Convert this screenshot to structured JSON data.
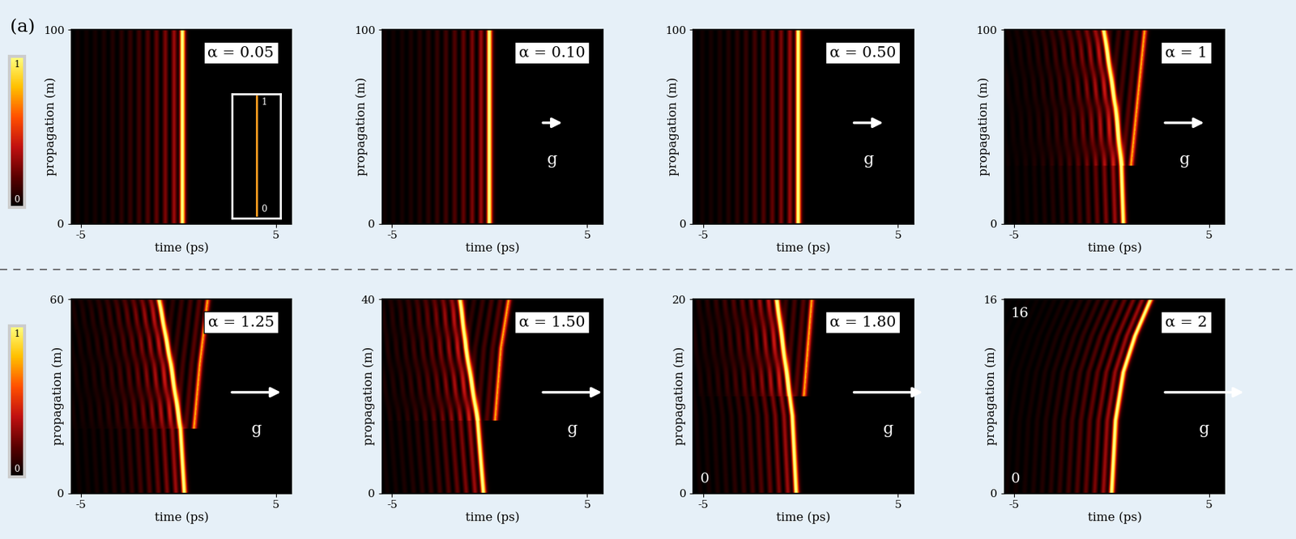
{
  "panel_label": "(a)",
  "colorbar": {
    "range": [
      0,
      1
    ],
    "ticks": [
      0,
      1
    ]
  },
  "chart_data": [
    {
      "type": "heatmap",
      "title": "α = 0.05",
      "xlabel": "time (ps)",
      "ylabel": "propagation (m)",
      "xlim": [
        -5.5,
        5.8
      ],
      "xticks": [
        -5,
        5
      ],
      "ylim": [
        0,
        100
      ],
      "yticks": [
        0,
        100
      ],
      "g_arrow": false,
      "g_label": null,
      "inset": {
        "labels": [
          "1",
          "0"
        ]
      },
      "annotations": [],
      "trajectories": [
        {
          "z": [
            0,
            100
          ],
          "t": [
            0.2,
            0.2
          ],
          "amplitude": 1
        }
      ]
    },
    {
      "type": "heatmap",
      "title": "α = 0.10",
      "xlabel": "time (ps)",
      "ylabel": "propagation (m)",
      "xlim": [
        -5.5,
        5.8
      ],
      "xticks": [
        -5,
        5
      ],
      "ylim": [
        0,
        100
      ],
      "yticks": [
        0,
        100
      ],
      "g_arrow": true,
      "g_label": "g",
      "annotations": [],
      "trajectories": [
        {
          "z": [
            0,
            100
          ],
          "t": [
            0.0,
            0.0
          ],
          "amplitude": 1
        }
      ]
    },
    {
      "type": "heatmap",
      "title": "α = 0.50",
      "xlabel": "time (ps)",
      "ylabel": "propagation (m)",
      "xlim": [
        -5.5,
        5.8
      ],
      "xticks": [
        -5,
        5
      ],
      "ylim": [
        0,
        100
      ],
      "yticks": [
        0,
        100
      ],
      "g_arrow": true,
      "g_label": "g",
      "annotations": [],
      "trajectories": [
        {
          "z": [
            0,
            100
          ],
          "t": [
            -0.1,
            -0.1
          ],
          "amplitude": 1
        }
      ]
    },
    {
      "type": "heatmap",
      "title": "α = 1",
      "xlabel": "time (ps)",
      "ylabel": "propagation (m)",
      "xlim": [
        -5.5,
        5.8
      ],
      "xticks": [
        -5,
        5
      ],
      "ylim": [
        0,
        100
      ],
      "yticks": [
        0,
        100
      ],
      "g_arrow": true,
      "g_label": "g",
      "annotations": [],
      "trajectories": [
        {
          "z": [
            0,
            30,
            60,
            100
          ],
          "t": [
            0.6,
            0.5,
            0.2,
            -0.4
          ],
          "amplitude": 1
        },
        {
          "z": [
            30,
            60,
            100
          ],
          "t": [
            1.0,
            1.3,
            1.7
          ],
          "amplitude": 0.6
        }
      ]
    },
    {
      "type": "heatmap",
      "title": "α = 1.25",
      "xlabel": "time (ps)",
      "ylabel": "propagation (m)",
      "xlim": [
        -5.5,
        5.8
      ],
      "xticks": [
        -5,
        5
      ],
      "ylim": [
        0,
        60
      ],
      "yticks": [
        0,
        60
      ],
      "g_arrow": true,
      "g_label": "g",
      "annotations": [],
      "trajectories": [
        {
          "z": [
            0,
            20,
            40,
            60
          ],
          "t": [
            0.3,
            0.1,
            -0.4,
            -1.0
          ],
          "amplitude": 1
        },
        {
          "z": [
            20,
            40,
            60
          ],
          "t": [
            0.8,
            1.1,
            1.5
          ],
          "amplitude": 0.6
        }
      ]
    },
    {
      "type": "heatmap",
      "title": "α = 1.50",
      "xlabel": "time (ps)",
      "ylabel": "propagation (m)",
      "xlim": [
        -5.5,
        5.8
      ],
      "xticks": [
        -5,
        5
      ],
      "ylim": [
        0,
        40
      ],
      "yticks": [
        0,
        40
      ],
      "g_arrow": true,
      "g_label": "g",
      "annotations": [],
      "trajectories": [
        {
          "z": [
            0,
            15,
            30,
            40
          ],
          "t": [
            -0.3,
            -0.6,
            -1.2,
            -1.5
          ],
          "amplitude": 1
        },
        {
          "z": [
            15,
            30,
            40
          ],
          "t": [
            0.3,
            0.6,
            1.0
          ],
          "amplitude": 0.6
        }
      ]
    },
    {
      "type": "heatmap",
      "title": "α = 1.80",
      "xlabel": "time (ps)",
      "ylabel": "propagation (m)",
      "xlim": [
        -5.5,
        5.8
      ],
      "xticks": [
        -5,
        5
      ],
      "ylim": [
        0,
        20
      ],
      "yticks": [
        0,
        20
      ],
      "g_arrow": true,
      "g_label": "g",
      "annotations": [
        "0"
      ],
      "trajectories": [
        {
          "z": [
            0,
            8,
            14,
            20
          ],
          "t": [
            -0.2,
            -0.4,
            -0.8,
            -1.2
          ],
          "amplitude": 1
        },
        {
          "z": [
            10,
            20
          ],
          "t": [
            0.2,
            0.6
          ],
          "amplitude": 0.6
        }
      ]
    },
    {
      "type": "heatmap",
      "title": "α = 2",
      "xlabel": "time (ps)",
      "ylabel": "propagation (m)",
      "xlim": [
        -5.5,
        5.8
      ],
      "xticks": [
        -5,
        5
      ],
      "ylim": [
        0,
        16
      ],
      "yticks": [
        0,
        16
      ],
      "g_arrow": true,
      "g_label": "g",
      "annotations": [
        "16",
        "0"
      ],
      "trajectories": [
        {
          "z": [
            0,
            6,
            10,
            13,
            16
          ],
          "t": [
            0.0,
            0.2,
            0.6,
            1.2,
            2.0
          ],
          "amplitude": 1
        }
      ]
    }
  ]
}
